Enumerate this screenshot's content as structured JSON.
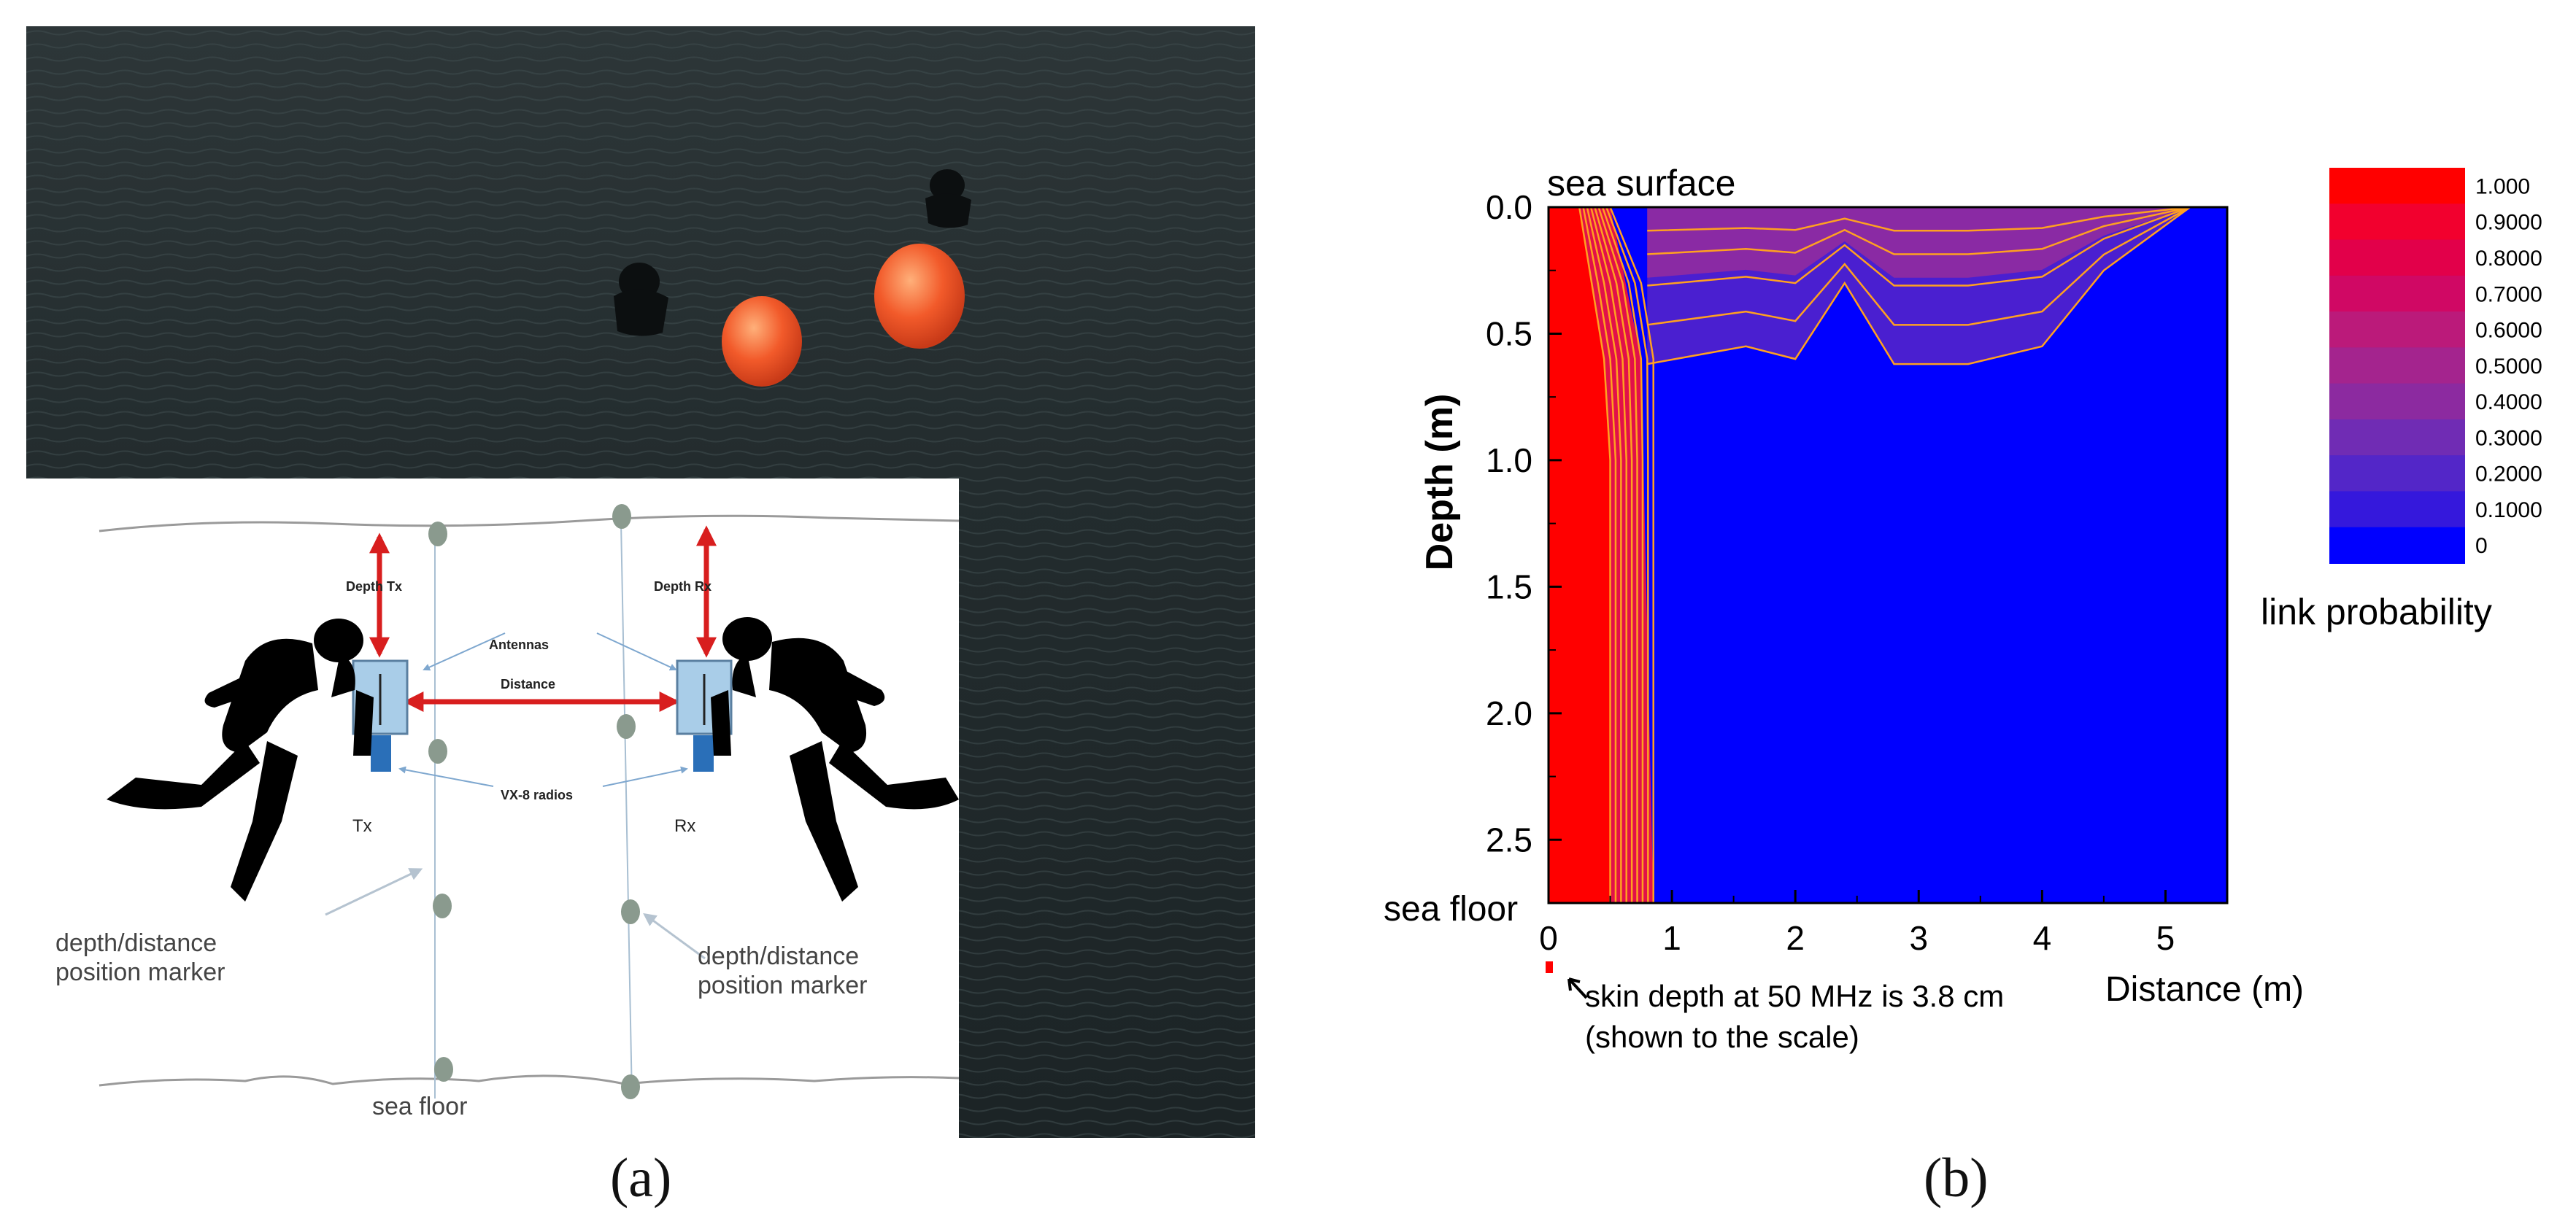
{
  "panel_a": {
    "caption": "(a)",
    "diagram": {
      "labels": {
        "depth_tx": "Depth Tx",
        "depth_rx": "Depth Rx",
        "antennas": "Antennas",
        "distance": "Distance",
        "radios": "VX-8 radios",
        "tx": "Tx",
        "rx": "Rx",
        "marker_left_1": "depth/distance",
        "marker_left_2": "position marker",
        "marker_right_1": "depth/distance",
        "marker_right_2": "position marker",
        "sea_floor": "sea floor"
      },
      "colors": {
        "arrow": "#d81e1e",
        "box": "#a9cde8",
        "marker": "#8a9a8e",
        "buoy": "#f25a2a"
      }
    }
  },
  "panel_b": {
    "caption": "(b)",
    "annotations": {
      "sea_surface": "sea surface",
      "sea_floor": "sea floor",
      "skin_depth_line1": "skin depth at 50 MHz is 3.8 cm",
      "skin_depth_line2": "(shown to the scale)"
    },
    "colorbar": {
      "title": "link probability",
      "levels": [
        "1.000",
        "0.9000",
        "0.8000",
        "0.7000",
        "0.6000",
        "0.5000",
        "0.4000",
        "0.3000",
        "0.2000",
        "0.1000",
        "0"
      ],
      "colors": [
        "#ff0000",
        "#f2002e",
        "#e2004a",
        "#d00864",
        "#bb1a7a",
        "#a4248e",
        "#8c2aa0",
        "#702cb4",
        "#5326c8",
        "#3518dc",
        "#0000ff"
      ]
    }
  },
  "chart_data": {
    "type": "heatmap",
    "xlabel": "Distance (m)",
    "ylabel": "Depth (m)",
    "xlim": [
      0,
      5.5
    ],
    "ylim": [
      0,
      2.75
    ],
    "y_inverted": true,
    "xticks": [
      0,
      1,
      2,
      3,
      4,
      5
    ],
    "yticks": [
      "0.0",
      "0.5",
      "1.0",
      "1.5",
      "2.0",
      "2.5"
    ],
    "z_range": [
      0,
      1
    ],
    "contour_color": "#ffa020",
    "high_region_boundary": [
      {
        "depth": 0.0,
        "distance": 0.25
      },
      {
        "depth": 0.3,
        "distance": 0.35
      },
      {
        "depth": 0.6,
        "distance": 0.45
      },
      {
        "depth": 1.0,
        "distance": 0.5
      },
      {
        "depth": 2.75,
        "distance": 0.5
      }
    ],
    "falloff_region_boundary": [
      {
        "depth": 0.0,
        "distance": 0.5
      },
      {
        "depth": 0.6,
        "distance": 0.75
      },
      {
        "depth": 2.75,
        "distance": 0.85
      }
    ],
    "surface_band_bottom": [
      {
        "distance": 0.8,
        "depth": 0.62
      },
      {
        "distance": 1.6,
        "depth": 0.55
      },
      {
        "distance": 2.0,
        "depth": 0.6
      },
      {
        "distance": 2.4,
        "depth": 0.3
      },
      {
        "distance": 2.8,
        "depth": 0.62
      },
      {
        "distance": 3.4,
        "depth": 0.62
      },
      {
        "distance": 4.0,
        "depth": 0.55
      },
      {
        "distance": 4.5,
        "depth": 0.25
      },
      {
        "distance": 5.2,
        "depth": 0.0
      }
    ]
  }
}
